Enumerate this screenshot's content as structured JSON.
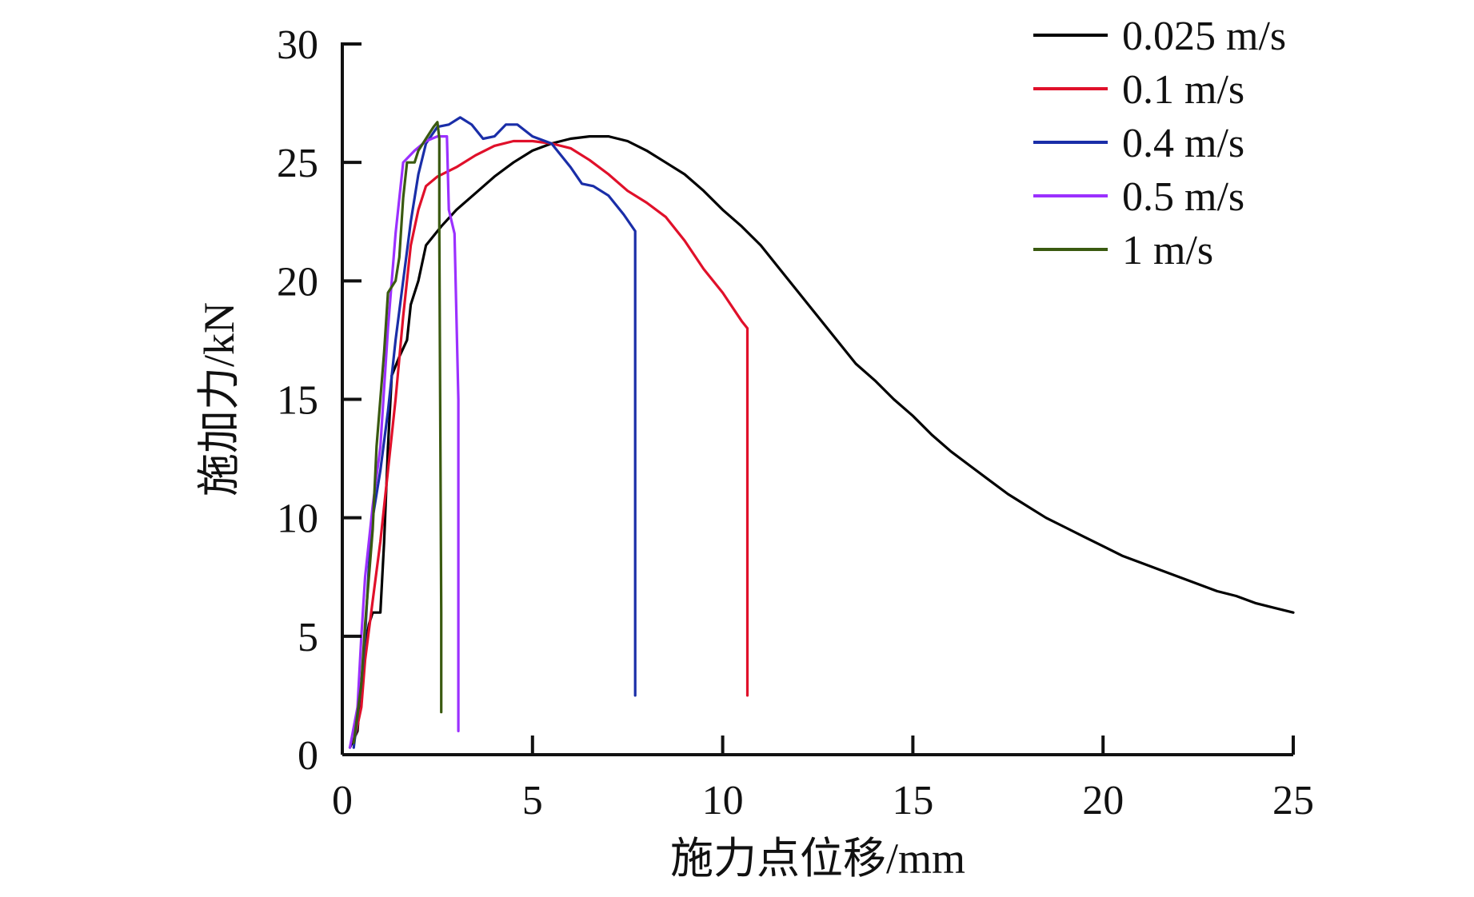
{
  "chart_data": {
    "type": "line",
    "title": "",
    "xlabel": "施力点位移/mm",
    "ylabel": "施加力/kN",
    "xlim": [
      0,
      25
    ],
    "ylim": [
      0,
      30
    ],
    "xticks": [
      0,
      5,
      10,
      15,
      20,
      25
    ],
    "yticks": [
      0,
      5,
      10,
      15,
      20,
      25,
      30
    ],
    "grid": false,
    "legend_position": "top-right",
    "series": [
      {
        "name": "0.025 m/s",
        "color": "#000000",
        "points": [
          [
            0.2,
            0.3
          ],
          [
            0.4,
            1.0
          ],
          [
            0.5,
            3.0
          ],
          [
            0.6,
            4.5
          ],
          [
            0.7,
            5.5
          ],
          [
            0.8,
            6.0
          ],
          [
            1.0,
            6.0
          ],
          [
            1.1,
            9.0
          ],
          [
            1.2,
            13.0
          ],
          [
            1.3,
            16.0
          ],
          [
            1.5,
            16.8
          ],
          [
            1.7,
            17.5
          ],
          [
            1.8,
            19.0
          ],
          [
            2.0,
            20.0
          ],
          [
            2.2,
            21.5
          ],
          [
            2.6,
            22.3
          ],
          [
            3.0,
            23.0
          ],
          [
            3.5,
            23.7
          ],
          [
            4.0,
            24.4
          ],
          [
            4.5,
            25.0
          ],
          [
            5.0,
            25.5
          ],
          [
            5.5,
            25.8
          ],
          [
            6.0,
            26.0
          ],
          [
            6.5,
            26.1
          ],
          [
            7.0,
            26.1
          ],
          [
            7.5,
            25.9
          ],
          [
            8.0,
            25.5
          ],
          [
            8.5,
            25.0
          ],
          [
            9.0,
            24.5
          ],
          [
            9.5,
            23.8
          ],
          [
            10.0,
            23.0
          ],
          [
            10.5,
            22.3
          ],
          [
            11.0,
            21.5
          ],
          [
            11.5,
            20.5
          ],
          [
            12.0,
            19.5
          ],
          [
            12.5,
            18.5
          ],
          [
            13.0,
            17.5
          ],
          [
            13.5,
            16.5
          ],
          [
            14.0,
            15.8
          ],
          [
            14.5,
            15.0
          ],
          [
            15.0,
            14.3
          ],
          [
            15.5,
            13.5
          ],
          [
            16.0,
            12.8
          ],
          [
            16.5,
            12.2
          ],
          [
            17.0,
            11.6
          ],
          [
            17.5,
            11.0
          ],
          [
            18.0,
            10.5
          ],
          [
            18.5,
            10.0
          ],
          [
            19.0,
            9.6
          ],
          [
            19.5,
            9.2
          ],
          [
            20.0,
            8.8
          ],
          [
            20.5,
            8.4
          ],
          [
            21.0,
            8.1
          ],
          [
            21.5,
            7.8
          ],
          [
            22.0,
            7.5
          ],
          [
            22.5,
            7.2
          ],
          [
            23.0,
            6.9
          ],
          [
            23.5,
            6.7
          ],
          [
            24.0,
            6.4
          ],
          [
            24.5,
            6.2
          ],
          [
            25.0,
            6.0
          ]
        ]
      },
      {
        "name": "0.1 m/s",
        "color": "#e0102a",
        "points": [
          [
            0.3,
            0.5
          ],
          [
            0.5,
            2.0
          ],
          [
            0.6,
            4.0
          ],
          [
            0.8,
            6.5
          ],
          [
            1.0,
            9.0
          ],
          [
            1.2,
            12.0
          ],
          [
            1.4,
            15.0
          ],
          [
            1.6,
            18.5
          ],
          [
            1.8,
            21.5
          ],
          [
            2.0,
            23.0
          ],
          [
            2.2,
            24.0
          ],
          [
            2.5,
            24.4
          ],
          [
            3.0,
            24.8
          ],
          [
            3.5,
            25.3
          ],
          [
            4.0,
            25.7
          ],
          [
            4.5,
            25.9
          ],
          [
            5.0,
            25.9
          ],
          [
            5.5,
            25.8
          ],
          [
            6.0,
            25.6
          ],
          [
            6.5,
            25.1
          ],
          [
            7.0,
            24.5
          ],
          [
            7.5,
            23.8
          ],
          [
            8.0,
            23.3
          ],
          [
            8.5,
            22.7
          ],
          [
            9.0,
            21.7
          ],
          [
            9.5,
            20.5
          ],
          [
            10.0,
            19.5
          ],
          [
            10.5,
            18.3
          ],
          [
            10.65,
            18.0
          ],
          [
            10.65,
            2.5
          ]
        ]
      },
      {
        "name": "0.4 m/s",
        "color": "#1a2ea8",
        "points": [
          [
            0.3,
            0.3
          ],
          [
            0.5,
            3.0
          ],
          [
            0.6,
            5.0
          ],
          [
            0.7,
            8.0
          ],
          [
            0.8,
            10.0
          ],
          [
            1.0,
            12.0
          ],
          [
            1.2,
            14.5
          ],
          [
            1.4,
            17.5
          ],
          [
            1.6,
            20.0
          ],
          [
            1.8,
            22.5
          ],
          [
            2.0,
            24.5
          ],
          [
            2.2,
            25.8
          ],
          [
            2.5,
            26.5
          ],
          [
            2.8,
            26.6
          ],
          [
            3.1,
            26.9
          ],
          [
            3.4,
            26.6
          ],
          [
            3.7,
            26.0
          ],
          [
            4.0,
            26.1
          ],
          [
            4.3,
            26.6
          ],
          [
            4.6,
            26.6
          ],
          [
            5.0,
            26.1
          ],
          [
            5.5,
            25.8
          ],
          [
            6.0,
            24.8
          ],
          [
            6.3,
            24.1
          ],
          [
            6.6,
            24.0
          ],
          [
            7.0,
            23.6
          ],
          [
            7.4,
            22.8
          ],
          [
            7.7,
            22.1
          ],
          [
            7.7,
            2.5
          ]
        ]
      },
      {
        "name": "0.5 m/s",
        "color": "#9b30ff",
        "points": [
          [
            0.2,
            0.3
          ],
          [
            0.4,
            2.0
          ],
          [
            0.5,
            5.0
          ],
          [
            0.6,
            7.5
          ],
          [
            0.8,
            10.5
          ],
          [
            1.0,
            13.0
          ],
          [
            1.2,
            18.0
          ],
          [
            1.4,
            22.0
          ],
          [
            1.6,
            25.0
          ],
          [
            1.9,
            25.5
          ],
          [
            2.2,
            25.9
          ],
          [
            2.5,
            26.1
          ],
          [
            2.75,
            26.1
          ],
          [
            2.8,
            23.0
          ],
          [
            2.95,
            22.0
          ],
          [
            3.05,
            15.0
          ],
          [
            3.05,
            1.0
          ]
        ]
      },
      {
        "name": "1 m/s",
        "color": "#3a5a10",
        "points": [
          [
            0.3,
            0.5
          ],
          [
            0.5,
            3.0
          ],
          [
            0.6,
            5.5
          ],
          [
            0.8,
            9.5
          ],
          [
            0.9,
            13.0
          ],
          [
            1.1,
            17.0
          ],
          [
            1.2,
            19.5
          ],
          [
            1.4,
            20.0
          ],
          [
            1.5,
            21.0
          ],
          [
            1.6,
            23.5
          ],
          [
            1.7,
            25.0
          ],
          [
            1.9,
            25.0
          ],
          [
            2.0,
            25.5
          ],
          [
            2.2,
            26.0
          ],
          [
            2.4,
            26.5
          ],
          [
            2.5,
            26.7
          ],
          [
            2.55,
            26.0
          ],
          [
            2.55,
            22.0
          ],
          [
            2.6,
            6.0
          ],
          [
            2.6,
            1.8
          ]
        ]
      }
    ]
  }
}
